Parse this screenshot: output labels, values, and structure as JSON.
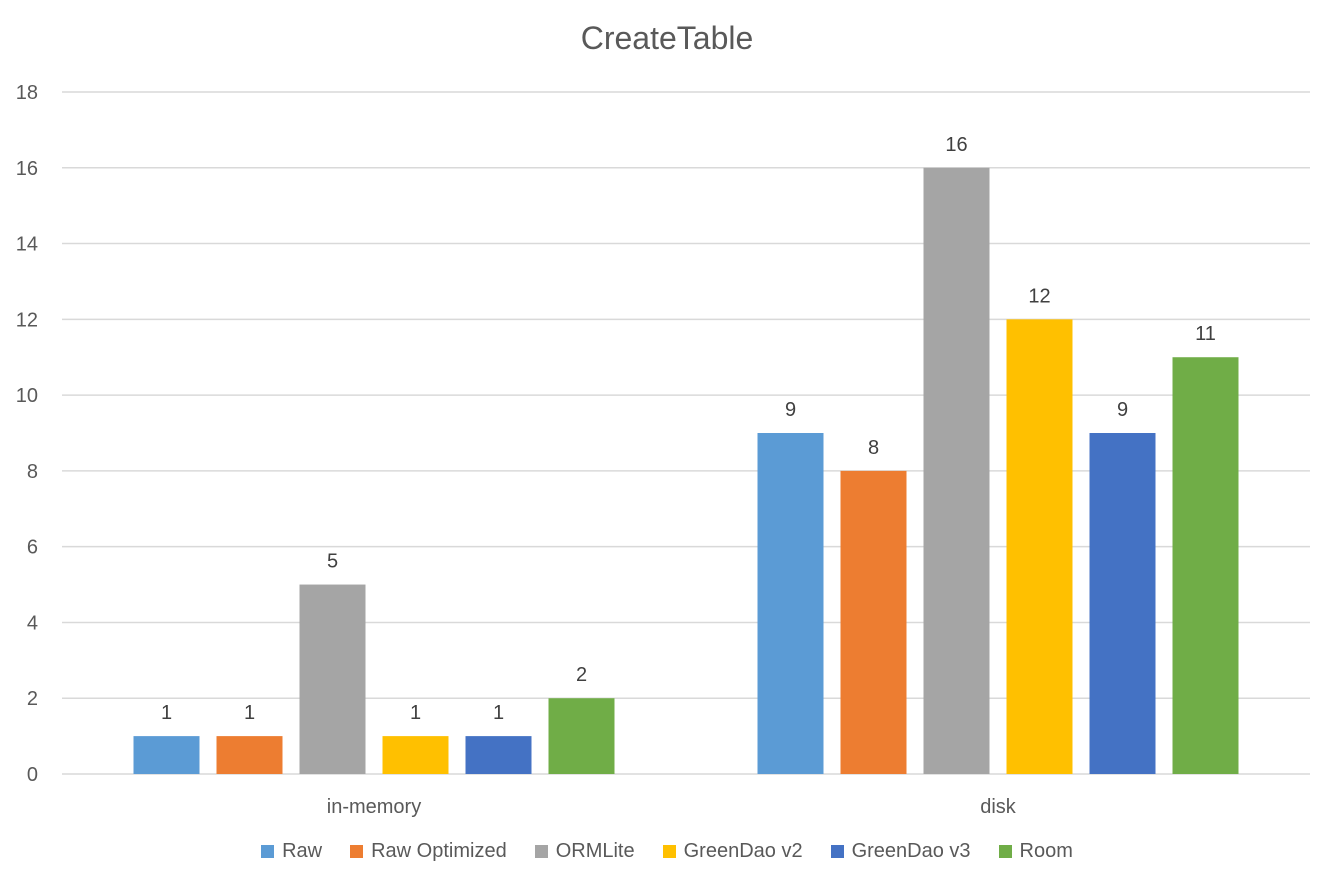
{
  "chart_data": {
    "type": "bar",
    "title": "CreateTable",
    "categories": [
      "in-memory",
      "disk"
    ],
    "ylim": [
      0,
      18
    ],
    "yticks": [
      0,
      2,
      4,
      6,
      8,
      10,
      12,
      14,
      16,
      18
    ],
    "grid": true,
    "legend_position": "bottom",
    "series": [
      {
        "name": "Raw",
        "color": "#5B9BD5",
        "values": [
          1,
          9
        ]
      },
      {
        "name": "Raw Optimized",
        "color": "#ED7D31",
        "values": [
          1,
          8
        ]
      },
      {
        "name": "ORMLite",
        "color": "#A5A5A5",
        "values": [
          5,
          16
        ]
      },
      {
        "name": "GreenDao v2",
        "color": "#FFC000",
        "values": [
          1,
          12
        ]
      },
      {
        "name": "GreenDao v3",
        "color": "#4472C4",
        "values": [
          1,
          9
        ]
      },
      {
        "name": "Room",
        "color": "#70AD47",
        "values": [
          2,
          11
        ]
      }
    ]
  }
}
